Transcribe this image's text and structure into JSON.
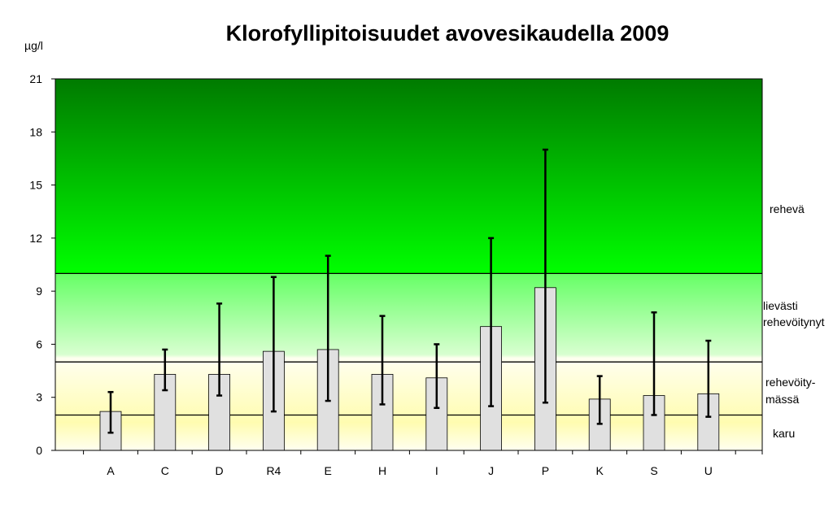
{
  "chart_data": {
    "type": "bar",
    "title": "Klorofyllipitoisuudet avovesikaudella  2009",
    "ylabel": "µg/l",
    "xlabel": "",
    "ylim": [
      0,
      21
    ],
    "yticks": [
      0,
      3,
      6,
      9,
      12,
      15,
      18,
      21
    ],
    "categories": [
      "A",
      "C",
      "D",
      "R4",
      "E",
      "H",
      "I",
      "J",
      "P",
      "K",
      "S",
      "U"
    ],
    "values": [
      2.2,
      4.3,
      4.3,
      5.6,
      5.7,
      4.3,
      4.1,
      7.0,
      9.2,
      2.9,
      3.1,
      3.2
    ],
    "error_min": [
      1.0,
      3.4,
      3.1,
      2.2,
      2.8,
      2.6,
      2.4,
      2.5,
      2.7,
      1.5,
      2.0,
      1.9
    ],
    "error_max": [
      3.3,
      5.7,
      8.3,
      9.8,
      11.0,
      7.6,
      6.0,
      12.0,
      17.0,
      4.2,
      7.8,
      6.2
    ],
    "thresholds": [
      2,
      5,
      10
    ],
    "zones": [
      {
        "label": "karu",
        "from": 0,
        "to": 2
      },
      {
        "label": "rehevöity-\nmässä",
        "from": 2,
        "to": 5
      },
      {
        "label": "lievästi\nrehevöitynyt",
        "from": 5,
        "to": 10
      },
      {
        "label": "rehevä",
        "from": 10,
        "to": 21
      }
    ],
    "grid": false,
    "legend": "none",
    "colors": {
      "bar_fill": "#e0e0e0",
      "bar_stroke": "#000000",
      "error_bar": "#000000",
      "threshold_line": "#000000",
      "zone_karu": "#fffff0",
      "zone_rehevoitymassa": "#fffcb0",
      "zone_lievasti": "#66ff66",
      "zone_reheva_bottom": "#00ff00",
      "zone_reheva_top": "#007a00"
    }
  }
}
